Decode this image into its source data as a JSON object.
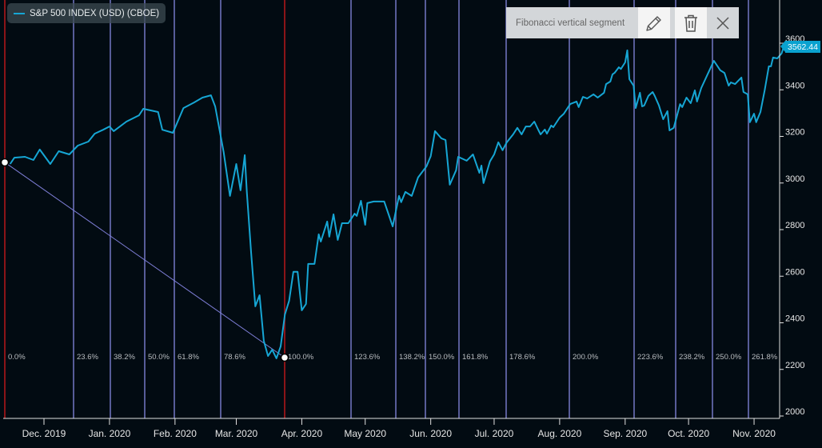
{
  "legend": {
    "series_label": "S&P 500 INDEX (USD) (CBOE)",
    "color": "#16a6d4"
  },
  "toolbar": {
    "title": "Fibonacci vertical segment",
    "edit_icon": "pencil-icon",
    "delete_icon": "trash-icon",
    "close_icon": "close-icon"
  },
  "last_price": "3562.44",
  "chart_data": {
    "type": "line",
    "title": "",
    "series": [
      {
        "name": "S&P 500 INDEX (USD) (CBOE)",
        "color": "#16a6d4",
        "points": [
          [
            "2019-11-15",
            3061
          ],
          [
            "2019-11-17",
            3088
          ],
          [
            "2019-11-22",
            3092
          ],
          [
            "2019-11-26",
            3078
          ],
          [
            "2019-11-29",
            3123
          ],
          [
            "2019-12-04",
            3061
          ],
          [
            "2019-12-08",
            3116
          ],
          [
            "2019-12-13",
            3102
          ],
          [
            "2019-12-17",
            3140
          ],
          [
            "2019-12-22",
            3157
          ],
          [
            "2019-12-25",
            3191
          ],
          [
            "2019-12-29",
            3208
          ],
          [
            "2020-01-01",
            3222
          ],
          [
            "2020-01-03",
            3202
          ],
          [
            "2020-01-09",
            3243
          ],
          [
            "2020-01-15",
            3270
          ],
          [
            "2020-01-17",
            3298
          ],
          [
            "2020-01-24",
            3284
          ],
          [
            "2020-01-26",
            3208
          ],
          [
            "2020-01-31",
            3195
          ],
          [
            "2020-02-05",
            3301
          ],
          [
            "2020-02-10",
            3325
          ],
          [
            "2020-02-14",
            3346
          ],
          [
            "2020-02-18",
            3356
          ],
          [
            "2020-02-20",
            3308
          ],
          [
            "2020-02-24",
            3112
          ],
          [
            "2020-02-27",
            2924
          ],
          [
            "2020-03-01",
            3061
          ],
          [
            "2020-03-03",
            2948
          ],
          [
            "2020-03-05",
            3099
          ],
          [
            "2020-03-06",
            2941
          ],
          [
            "2020-03-08",
            2683
          ],
          [
            "2020-03-10",
            2450
          ],
          [
            "2020-03-12",
            2498
          ],
          [
            "2020-03-14",
            2302
          ],
          [
            "2020-03-16",
            2237
          ],
          [
            "2020-03-18",
            2264
          ],
          [
            "2020-03-20",
            2227
          ],
          [
            "2020-03-22",
            2278
          ],
          [
            "2020-03-24",
            2415
          ],
          [
            "2020-03-26",
            2474
          ],
          [
            "2020-03-28",
            2598
          ],
          [
            "2020-03-30",
            2598
          ],
          [
            "2020-04-01",
            2433
          ],
          [
            "2020-04-03",
            2460
          ],
          [
            "2020-04-04",
            2632
          ],
          [
            "2020-04-07",
            2632
          ],
          [
            "2020-04-09",
            2759
          ],
          [
            "2020-04-10",
            2728
          ],
          [
            "2020-04-13",
            2814
          ],
          [
            "2020-04-14",
            2749
          ],
          [
            "2020-04-16",
            2845
          ],
          [
            "2020-04-18",
            2735
          ],
          [
            "2020-04-20",
            2807
          ],
          [
            "2020-04-23",
            2807
          ],
          [
            "2020-04-26",
            2848
          ],
          [
            "2020-04-27",
            2838
          ],
          [
            "2020-04-29",
            2903
          ],
          [
            "2020-05-01",
            2800
          ],
          [
            "2020-05-02",
            2893
          ],
          [
            "2020-05-05",
            2900
          ],
          [
            "2020-05-10",
            2900
          ],
          [
            "2020-05-14",
            2793
          ],
          [
            "2020-05-17",
            2924
          ],
          [
            "2020-05-18",
            2897
          ],
          [
            "2020-05-20",
            2941
          ],
          [
            "2020-05-23",
            2924
          ],
          [
            "2020-05-26",
            3003
          ],
          [
            "2020-05-30",
            3051
          ],
          [
            "2020-06-01",
            3095
          ],
          [
            "2020-06-03",
            3202
          ],
          [
            "2020-06-06",
            3171
          ],
          [
            "2020-06-08",
            3164
          ],
          [
            "2020-06-10",
            2972
          ],
          [
            "2020-06-13",
            3034
          ],
          [
            "2020-06-14",
            3092
          ],
          [
            "2020-06-18",
            3075
          ],
          [
            "2020-06-21",
            3102
          ],
          [
            "2020-06-24",
            3023
          ],
          [
            "2020-06-25",
            3054
          ],
          [
            "2020-06-26",
            2979
          ],
          [
            "2020-06-29",
            3072
          ],
          [
            "2020-07-01",
            3102
          ],
          [
            "2020-07-03",
            3154
          ],
          [
            "2020-07-05",
            3120
          ],
          [
            "2020-07-07",
            3154
          ],
          [
            "2020-07-10",
            3188
          ],
          [
            "2020-07-12",
            3216
          ],
          [
            "2020-07-14",
            3188
          ],
          [
            "2020-07-16",
            3222
          ],
          [
            "2020-07-18",
            3222
          ],
          [
            "2020-07-20",
            3243
          ],
          [
            "2020-07-22",
            3205
          ],
          [
            "2020-07-23",
            3188
          ],
          [
            "2020-07-25",
            3209
          ],
          [
            "2020-07-26",
            3191
          ],
          [
            "2020-07-28",
            3226
          ],
          [
            "2020-07-29",
            3219
          ],
          [
            "2020-08-01",
            3260
          ],
          [
            "2020-08-03",
            3277
          ],
          [
            "2020-08-06",
            3318
          ],
          [
            "2020-08-09",
            3329
          ],
          [
            "2020-08-10",
            3305
          ],
          [
            "2020-08-12",
            3349
          ],
          [
            "2020-08-14",
            3342
          ],
          [
            "2020-08-17",
            3360
          ],
          [
            "2020-08-19",
            3346
          ],
          [
            "2020-08-22",
            3367
          ],
          [
            "2020-08-23",
            3404
          ],
          [
            "2020-08-25",
            3415
          ],
          [
            "2020-08-26",
            3446
          ],
          [
            "2020-08-27",
            3452
          ],
          [
            "2020-08-29",
            3476
          ],
          [
            "2020-08-30",
            3469
          ],
          [
            "2020-09-01",
            3497
          ],
          [
            "2020-09-02",
            3549
          ],
          [
            "2020-09-03",
            3425
          ],
          [
            "2020-09-05",
            3397
          ],
          [
            "2020-09-06",
            3301
          ],
          [
            "2020-09-08",
            3367
          ],
          [
            "2020-09-09",
            3308
          ],
          [
            "2020-09-10",
            3312
          ],
          [
            "2020-09-12",
            3353
          ],
          [
            "2020-09-14",
            3370
          ],
          [
            "2020-09-15",
            3353
          ],
          [
            "2020-09-17",
            3312
          ],
          [
            "2020-09-19",
            3253
          ],
          [
            "2020-09-21",
            3288
          ],
          [
            "2020-09-22",
            3205
          ],
          [
            "2020-09-24",
            3216
          ],
          [
            "2020-09-27",
            3318
          ],
          [
            "2020-09-28",
            3305
          ],
          [
            "2020-09-30",
            3346
          ],
          [
            "2020-10-02",
            3322
          ],
          [
            "2020-10-04",
            3377
          ],
          [
            "2020-10-05",
            3329
          ],
          [
            "2020-10-07",
            3387
          ],
          [
            "2020-10-10",
            3446
          ],
          [
            "2020-10-13",
            3504
          ],
          [
            "2020-10-16",
            3463
          ],
          [
            "2020-10-18",
            3452
          ],
          [
            "2020-10-20",
            3397
          ],
          [
            "2020-10-21",
            3411
          ],
          [
            "2020-10-23",
            3404
          ],
          [
            "2020-10-26",
            3432
          ],
          [
            "2020-10-27",
            3370
          ],
          [
            "2020-10-29",
            3360
          ],
          [
            "2020-10-30",
            3240
          ],
          [
            "2020-11-01",
            3277
          ],
          [
            "2020-11-02",
            3240
          ],
          [
            "2020-11-04",
            3284
          ],
          [
            "2020-11-06",
            3377
          ],
          [
            "2020-11-08",
            3480
          ],
          [
            "2020-11-09",
            3480
          ],
          [
            "2020-11-10",
            3518
          ],
          [
            "2020-11-12",
            3514
          ],
          [
            "2020-11-14",
            3535
          ],
          [
            "2020-11-15",
            3562.44
          ]
        ]
      }
    ],
    "x_axis": {
      "type": "date",
      "tick_labels": [
        "Dec. 2019",
        "Jan. 2020",
        "Feb. 2020",
        "Mar. 2020",
        "Apr. 2020",
        "May 2020",
        "Jun. 2020",
        "Jul. 2020",
        "Aug. 2020",
        "Sep. 2020",
        "Oct. 2020",
        "Nov. 2020"
      ]
    },
    "y_axis": {
      "position": "right",
      "ylim": [
        2000,
        3650
      ],
      "tick_labels": [
        "2000",
        "2200",
        "2400",
        "2600",
        "2800",
        "3000",
        "3200",
        "3400",
        "3600"
      ]
    },
    "grid": false,
    "legend": "top-left",
    "fibonacci": {
      "anchor_start": [
        "2019-11-13",
        3068
      ],
      "anchor_end": [
        "2020-03-23",
        2230
      ],
      "anchor_color": "#8b1418",
      "level_color": "#575c98",
      "trend_line_color": "#7f7fd8",
      "levels": [
        "0.0%",
        "23.6%",
        "38.2%",
        "50.0%",
        "61.8%",
        "78.6%",
        "100.0%",
        "123.6%",
        "138.2%",
        "150.0%",
        "161.8%",
        "178.6%",
        "200.0%",
        "223.6%",
        "238.2%",
        "250.0%",
        "261.8%"
      ]
    }
  }
}
